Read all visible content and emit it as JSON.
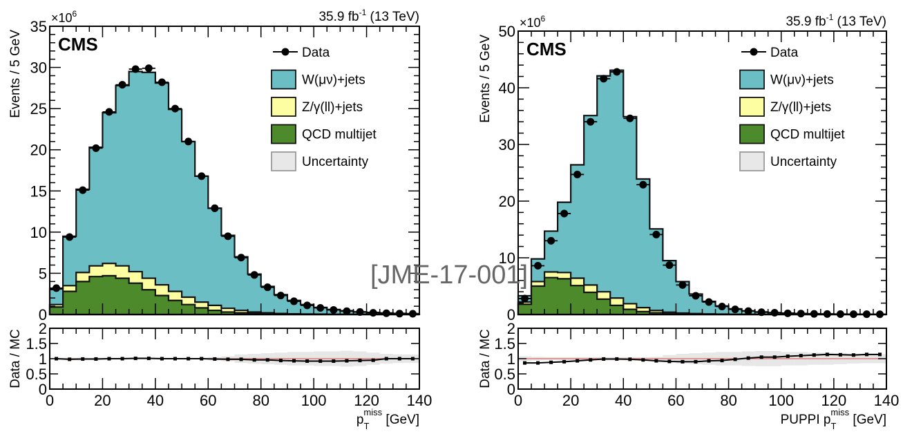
{
  "watermark": "[JME-17-001]",
  "chart_data": [
    {
      "type": "bar",
      "subtype": "stacked-histogram-with-ratio",
      "id": "left",
      "experiment_label": "CMS",
      "lumi_label": "35.9 fb",
      "lumi_sup": "-1",
      "energy_label": " (13 TeV)",
      "y_multiplier": "×10",
      "y_multiplier_exp": "6",
      "ylabel": "Events / 5 GeV",
      "ratio_ylabel": "Data / MC",
      "xlabel_prefix": "",
      "xlabel_p": "p",
      "xlabel_sub": "T",
      "xlabel_sup": "miss",
      "xlabel_unit": " [GeV]",
      "xlim": [
        0,
        140
      ],
      "ylim": [
        0,
        35
      ],
      "ratio_ylim": [
        0,
        2
      ],
      "bin_width": 5,
      "x_ticks": [
        0,
        20,
        40,
        60,
        80,
        100,
        120,
        140
      ],
      "y_ticks": [
        0,
        5,
        10,
        15,
        20,
        25,
        30,
        35
      ],
      "ratio_y_ticks": [
        "0",
        "0.5",
        "1",
        "1.5",
        "2"
      ],
      "legend": {
        "placement": "top-right",
        "entries": [
          {
            "label": "Data",
            "kind": "marker"
          },
          {
            "label": "W(μν)+jets",
            "kind": "box",
            "color": "#6bbec3"
          },
          {
            "label": "Z/γ(ll)+jets",
            "kind": "box",
            "color": "#fdfda1"
          },
          {
            "label": "QCD multijet",
            "kind": "box",
            "color": "#4c8a2c"
          },
          {
            "label": "Uncertainty",
            "kind": "box",
            "color": "#e8e8e8"
          }
        ]
      },
      "series": [
        {
          "name": "QCD multijet",
          "color": "#4c8a2c",
          "values": [
            0.9,
            2.8,
            4.0,
            4.6,
            4.7,
            4.4,
            3.8,
            3.0,
            2.3,
            1.7,
            1.2,
            0.8,
            0.5,
            0.3,
            0.2,
            0.12,
            0.07,
            0.04,
            0.02,
            0.01,
            0.01,
            0,
            0,
            0,
            0,
            0,
            0,
            0
          ]
        },
        {
          "name": "Z/γ(ll)+jets",
          "color": "#fdfda1",
          "values": [
            0.3,
            0.7,
            1.1,
            1.3,
            1.5,
            1.5,
            1.4,
            1.4,
            1.3,
            1.1,
            0.9,
            0.7,
            0.6,
            0.45,
            0.3,
            0.18,
            0.13,
            0.08,
            0.06,
            0.04,
            0.03,
            0.02,
            0.02,
            0.01,
            0.01,
            0.01,
            0.01,
            0
          ]
        },
        {
          "name": "W(μν)+jets",
          "color": "#6bbec3",
          "values": [
            1.9,
            6.0,
            10.1,
            14.4,
            18.3,
            21.9,
            24.3,
            25.0,
            24.5,
            22.1,
            18.9,
            15.3,
            11.8,
            8.85,
            6.5,
            4.6,
            3.2,
            2.28,
            1.62,
            1.15,
            0.81,
            0.58,
            0.43,
            0.31,
            0.23,
            0.17,
            0.12,
            0.1
          ]
        }
      ],
      "data_points": [
        3.2,
        9.4,
        15.1,
        20.2,
        24.6,
        27.9,
        29.8,
        29.9,
        28.2,
        25.0,
        21.0,
        16.8,
        12.9,
        9.5,
        6.9,
        4.8,
        3.3,
        2.3,
        1.6,
        1.1,
        0.8,
        0.55,
        0.4,
        0.3,
        0.2,
        0.15,
        0.1,
        0.08
      ],
      "ratio_points": [
        1.0,
        0.98,
        0.99,
        0.99,
        1.0,
        1.0,
        1.01,
        1.01,
        1.0,
        1.0,
        1.0,
        1.0,
        0.99,
        0.98,
        0.98,
        0.96,
        0.96,
        0.94,
        0.93,
        0.92,
        0.92,
        0.92,
        0.93,
        0.94,
        0.95,
        1.0,
        1.0,
        1.0
      ],
      "ratio_unc": [
        0.02,
        0.02,
        0.02,
        0.02,
        0.02,
        0.02,
        0.02,
        0.02,
        0.02,
        0.02,
        0.02,
        0.02,
        0.05,
        0.08,
        0.14,
        0.16,
        0.18,
        0.2,
        0.22,
        0.22,
        0.24,
        0.24,
        0.26,
        0.24,
        0.2,
        0.16,
        0.14,
        0.14
      ]
    },
    {
      "type": "bar",
      "subtype": "stacked-histogram-with-ratio",
      "id": "right",
      "experiment_label": "CMS",
      "lumi_label": "35.9 fb",
      "lumi_sup": "-1",
      "energy_label": " (13 TeV)",
      "y_multiplier": "×10",
      "y_multiplier_exp": "6",
      "ylabel": "Events / 5 GeV",
      "ratio_ylabel": "Data / MC",
      "xlabel_prefix": "PUPPI ",
      "xlabel_p": "p",
      "xlabel_sub": "T",
      "xlabel_sup": "miss",
      "xlabel_unit": " [GeV]",
      "xlim": [
        0,
        140
      ],
      "ylim": [
        0,
        50
      ],
      "ratio_ylim": [
        0,
        2
      ],
      "bin_width": 5,
      "x_ticks": [
        0,
        20,
        40,
        60,
        80,
        100,
        120,
        140
      ],
      "y_ticks": [
        0,
        10,
        20,
        30,
        40,
        50
      ],
      "ratio_y_ticks": [
        "0",
        "0.5",
        "1",
        "1.5",
        "2"
      ],
      "legend": {
        "placement": "top-right",
        "entries": [
          {
            "label": "Data",
            "kind": "marker"
          },
          {
            "label": "W(μν)+jets",
            "kind": "box",
            "color": "#6bbec3"
          },
          {
            "label": "Z/γ(ll)+jets",
            "kind": "box",
            "color": "#fdfda1"
          },
          {
            "label": "QCD multijet",
            "kind": "box",
            "color": "#4c8a2c"
          },
          {
            "label": "Uncertainty",
            "kind": "box",
            "color": "#e8e8e8"
          }
        ]
      },
      "series": [
        {
          "name": "QCD multijet",
          "color": "#4c8a2c",
          "values": [
            1.8,
            5.0,
            6.5,
            6.3,
            5.1,
            3.9,
            2.7,
            1.6,
            0.9,
            0.5,
            0.3,
            0.15,
            0.1,
            0.05,
            0.03,
            0.02,
            0.01,
            0,
            0,
            0,
            0,
            0,
            0,
            0,
            0,
            0,
            0,
            0
          ]
        },
        {
          "name": "Z/γ(ll)+jets",
          "color": "#fdfda1",
          "values": [
            0.4,
            0.8,
            1.0,
            1.1,
            1.3,
            1.3,
            1.3,
            1.3,
            1.0,
            0.7,
            0.4,
            0.25,
            0.15,
            0.1,
            0.06,
            0.04,
            0.03,
            0.02,
            0.01,
            0.01,
            0.01,
            0,
            0,
            0,
            0,
            0,
            0,
            0
          ]
        },
        {
          "name": "W(μν)+jets",
          "color": "#6bbec3",
          "values": [
            1.1,
            4.0,
            7.2,
            12.4,
            20.0,
            29.9,
            38.1,
            40.2,
            33.0,
            22.7,
            14.4,
            9.1,
            5.55,
            3.45,
            2.21,
            1.44,
            0.96,
            0.63,
            0.44,
            0.31,
            0.22,
            0.17,
            0.12,
            0.09,
            0.07,
            0.05,
            0.04,
            0.03
          ]
        }
      ],
      "data_points": [
        2.8,
        8.6,
        13.0,
        17.8,
        24.7,
        34.0,
        41.6,
        42.8,
        34.6,
        22.9,
        14.1,
        8.7,
        5.2,
        3.3,
        2.2,
        1.4,
        0.9,
        0.6,
        0.4,
        0.3,
        0.2,
        0.15,
        0.1,
        0.08,
        0.06,
        0.05,
        0.04,
        0.03
      ],
      "ratio_points": [
        0.86,
        0.86,
        0.88,
        0.9,
        0.93,
        0.96,
        0.99,
        0.99,
        0.98,
        0.96,
        0.93,
        0.91,
        0.9,
        0.9,
        0.93,
        0.94,
        0.98,
        1.02,
        1.05,
        1.05,
        1.08,
        1.1,
        1.12,
        1.14,
        1.13,
        1.12,
        1.14,
        1.14
      ],
      "ratio_unc": [
        0.08,
        0.06,
        0.05,
        0.05,
        0.05,
        0.05,
        0.05,
        0.05,
        0.05,
        0.05,
        0.06,
        0.12,
        0.16,
        0.18,
        0.2,
        0.22,
        0.22,
        0.24,
        0.25,
        0.25,
        0.22,
        0.22,
        0.2,
        0.2,
        0.18,
        0.16,
        0.15,
        0.15
      ]
    }
  ]
}
